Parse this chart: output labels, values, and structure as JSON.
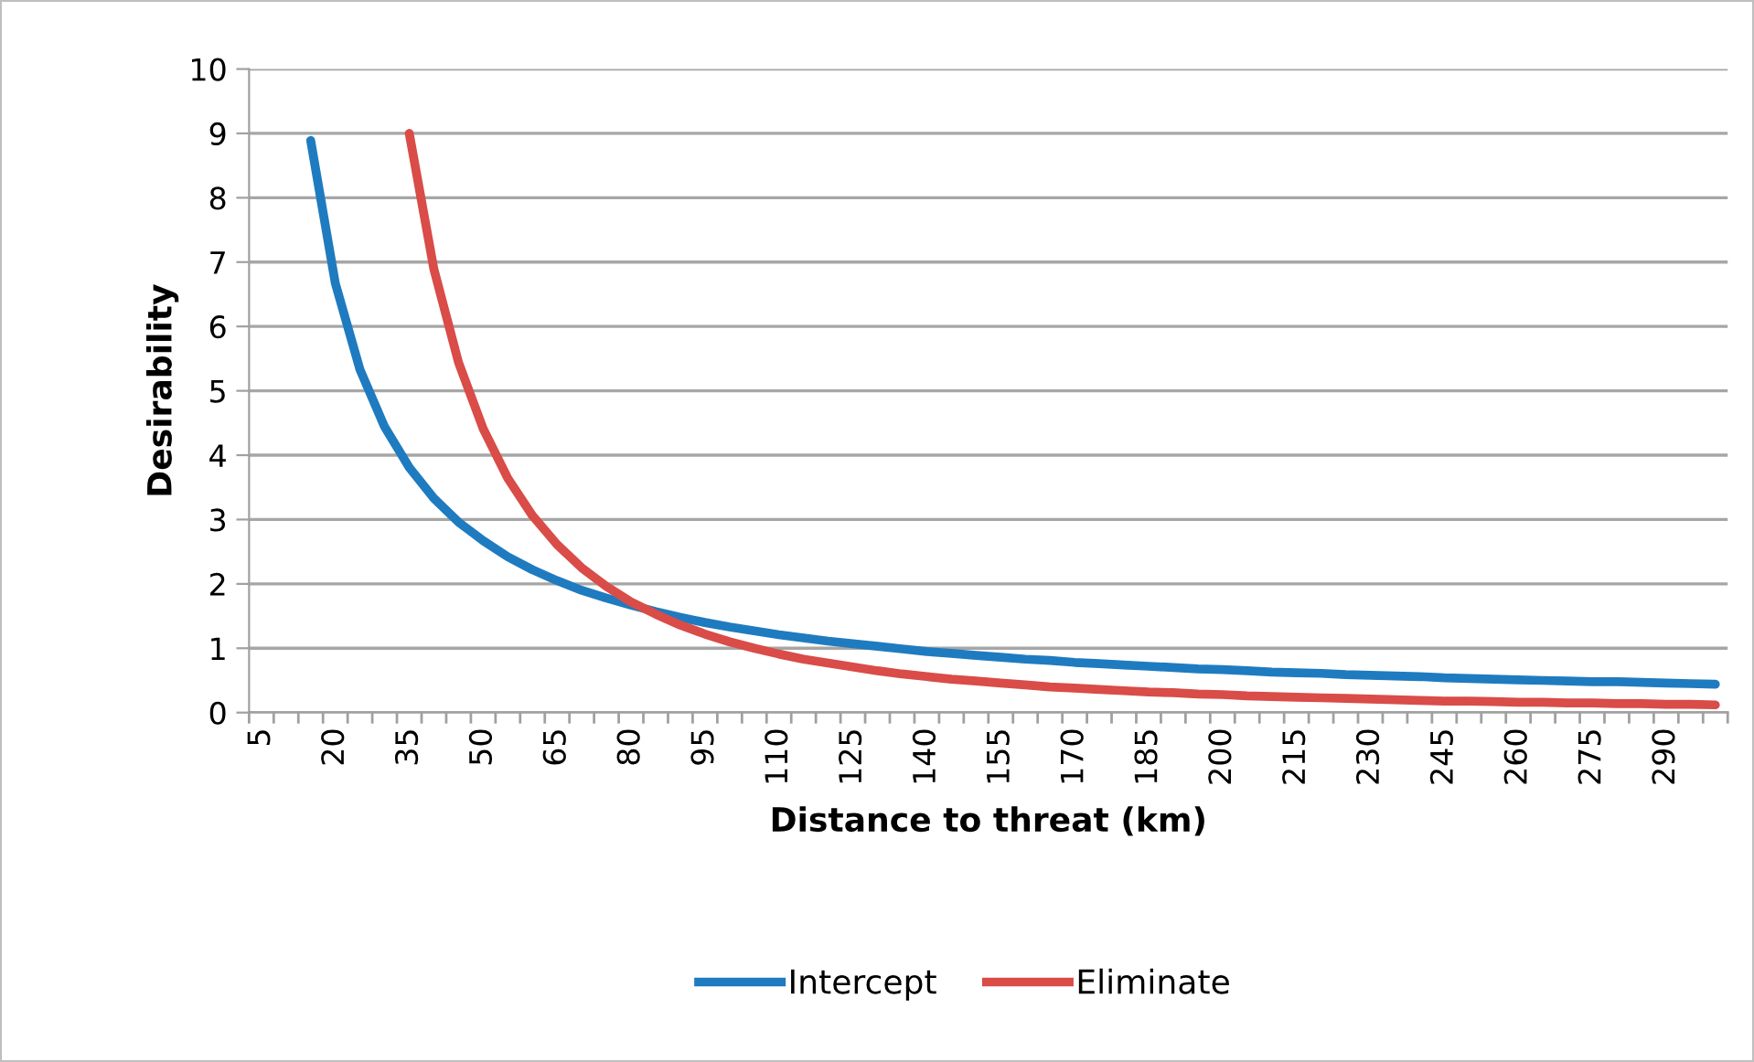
{
  "chart_data": {
    "type": "line",
    "xlabel": "Distance to threat (km)",
    "ylabel": "Desirability",
    "categories": [
      "5",
      null,
      null,
      "20",
      null,
      null,
      "35",
      null,
      null,
      "50",
      null,
      null,
      "65",
      null,
      null,
      "80",
      null,
      null,
      "95",
      null,
      null,
      "110",
      null,
      null,
      "125",
      null,
      null,
      "140",
      null,
      null,
      "155",
      null,
      null,
      "170",
      null,
      null,
      "185",
      null,
      null,
      "200",
      null,
      null,
      "215",
      null,
      null,
      "230",
      null,
      null,
      "245",
      null,
      null,
      "260",
      null,
      null,
      "275",
      null,
      null,
      "290",
      null,
      null
    ],
    "series": [
      {
        "name": "Intercept",
        "color": "#1f7bc0",
        "values": [
          null,
          null,
          8.89,
          6.67,
          5.33,
          4.44,
          3.81,
          3.33,
          2.96,
          2.67,
          2.42,
          2.22,
          2.05,
          1.9,
          1.78,
          1.67,
          1.57,
          1.48,
          1.4,
          1.33,
          1.27,
          1.21,
          1.16,
          1.11,
          1.07,
          1.03,
          0.99,
          0.95,
          0.92,
          0.89,
          0.86,
          0.83,
          0.81,
          0.78,
          0.76,
          0.74,
          0.72,
          0.7,
          0.68,
          0.67,
          0.65,
          0.63,
          0.62,
          0.61,
          0.59,
          0.58,
          0.57,
          0.56,
          0.54,
          0.53,
          0.52,
          0.51,
          0.5,
          0.49,
          0.48,
          0.48,
          0.47,
          0.46,
          0.45,
          0.44
        ]
      },
      {
        "name": "Eliminate",
        "color": "#d94c48",
        "values": [
          null,
          null,
          null,
          null,
          null,
          null,
          9.0,
          6.89,
          5.44,
          4.41,
          3.64,
          3.06,
          2.61,
          2.25,
          1.96,
          1.72,
          1.53,
          1.36,
          1.22,
          1.1,
          1.0,
          0.91,
          0.83,
          0.77,
          0.71,
          0.65,
          0.6,
          0.56,
          0.52,
          0.49,
          0.46,
          0.43,
          0.4,
          0.38,
          0.36,
          0.34,
          0.32,
          0.31,
          0.29,
          0.28,
          0.26,
          0.25,
          0.24,
          0.23,
          0.22,
          0.21,
          0.2,
          0.19,
          0.18,
          0.18,
          0.17,
          0.16,
          0.16,
          0.15,
          0.15,
          0.14,
          0.14,
          0.13,
          0.13,
          0.12
        ]
      }
    ],
    "ylim": [
      0,
      10
    ],
    "yticks": [
      0,
      1,
      2,
      3,
      4,
      5,
      6,
      7,
      8,
      9,
      10
    ],
    "grid": "y",
    "legend": "bottom",
    "marker": "none",
    "line_style": "solid"
  }
}
